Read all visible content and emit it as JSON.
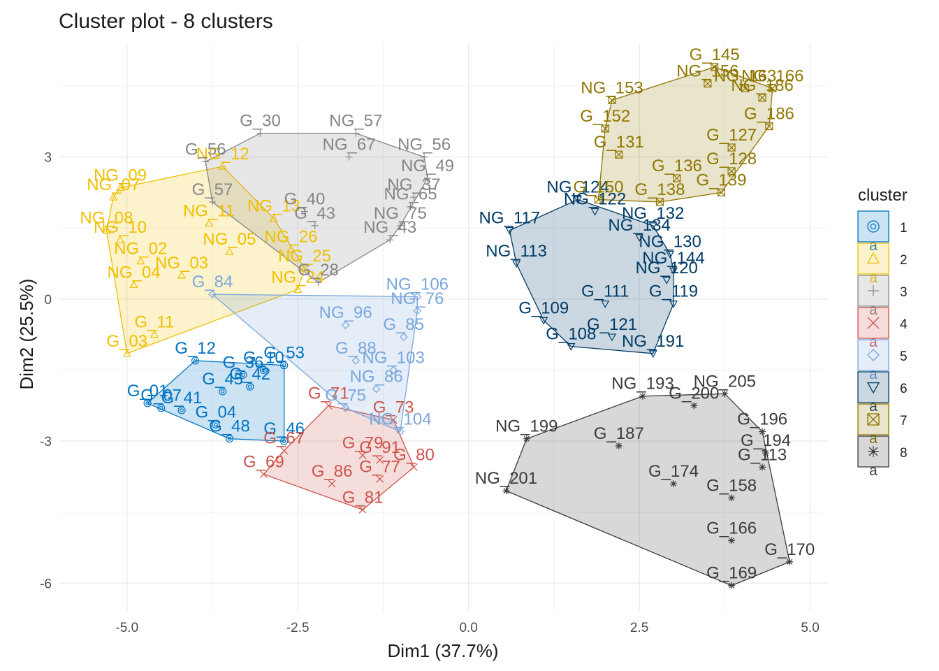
{
  "chart_data": {
    "type": "scatter",
    "title": "Cluster plot - 8 clusters",
    "xlabel": "Dim1 (37.7%)",
    "ylabel": "Dim2 (25.5%)",
    "xlim": [
      -6.0,
      5.25
    ],
    "ylim": [
      -6.6,
      5.4
    ],
    "xticks": [
      -5.0,
      -2.5,
      0.0,
      2.5,
      5.0
    ],
    "xtick_labels": [
      "-5.0",
      "-2.5",
      "0.0",
      "2.5",
      "5.0"
    ],
    "yticks": [
      -6,
      -3,
      0,
      3
    ],
    "ytick_labels": [
      "-6",
      "-3",
      "0",
      "3"
    ],
    "grid": true,
    "legend": {
      "title": "cluster",
      "placement": "right",
      "items": [
        {
          "label": "1",
          "color": "#0073C2",
          "shape": "circle"
        },
        {
          "label": "2",
          "color": "#EFC000",
          "shape": "triangle"
        },
        {
          "label": "3",
          "color": "#868686",
          "shape": "plus"
        },
        {
          "label": "4",
          "color": "#CD534C",
          "shape": "x"
        },
        {
          "label": "5",
          "color": "#7AA6DC",
          "shape": "diamond"
        },
        {
          "label": "6",
          "color": "#003C67",
          "shape": "triangle-down"
        },
        {
          "label": "7",
          "color": "#8F7700",
          "shape": "square-x"
        },
        {
          "label": "8",
          "color": "#3B3B3B",
          "shape": "star"
        }
      ]
    },
    "clusters": [
      {
        "name": "1",
        "points": [
          {
            "label": "G_01",
            "x": -4.7,
            "y": -2.2
          },
          {
            "label": "G_07",
            "x": -4.5,
            "y": -2.3
          },
          {
            "label": "G_41",
            "x": -4.2,
            "y": -2.35
          },
          {
            "label": "G_04",
            "x": -3.7,
            "y": -2.65
          },
          {
            "label": "G_48",
            "x": -3.5,
            "y": -2.95
          },
          {
            "label": "G_46",
            "x": -2.7,
            "y": -3.0
          },
          {
            "label": "G_45",
            "x": -3.6,
            "y": -1.95
          },
          {
            "label": "G_42",
            "x": -3.2,
            "y": -1.85
          },
          {
            "label": "G_12",
            "x": -4.0,
            "y": -1.3
          },
          {
            "label": "G_36",
            "x": -3.3,
            "y": -1.6
          },
          {
            "label": "G_10",
            "x": -3.0,
            "y": -1.5
          },
          {
            "label": "G_53",
            "x": -2.7,
            "y": -1.4
          }
        ]
      },
      {
        "name": "2",
        "points": [
          {
            "label": "NG_09",
            "x": -5.1,
            "y": 2.35
          },
          {
            "label": "NG_07",
            "x": -5.2,
            "y": 2.15
          },
          {
            "label": "NG_08",
            "x": -5.3,
            "y": 1.45
          },
          {
            "label": "NG_10",
            "x": -5.1,
            "y": 1.25
          },
          {
            "label": "NG_02",
            "x": -4.8,
            "y": 0.8
          },
          {
            "label": "NG_04",
            "x": -4.9,
            "y": 0.3
          },
          {
            "label": "G_11",
            "x": -4.6,
            "y": -0.75
          },
          {
            "label": "G_03",
            "x": -5.0,
            "y": -1.15
          },
          {
            "label": "NG_12",
            "x": -3.6,
            "y": 2.8
          },
          {
            "label": "NG_11",
            "x": -3.8,
            "y": 1.6
          },
          {
            "label": "NG_13",
            "x": -2.85,
            "y": 1.7
          },
          {
            "label": "NG_05",
            "x": -3.5,
            "y": 1.0
          },
          {
            "label": "NG_26",
            "x": -2.6,
            "y": 1.05
          },
          {
            "label": "NG_25",
            "x": -2.4,
            "y": 0.65
          },
          {
            "label": "NG_24",
            "x": -2.5,
            "y": 0.2
          },
          {
            "label": "NG_03",
            "x": -4.2,
            "y": 0.5
          }
        ]
      },
      {
        "name": "3",
        "points": [
          {
            "label": "G_30",
            "x": -3.05,
            "y": 3.5
          },
          {
            "label": "NG_57",
            "x": -1.65,
            "y": 3.5
          },
          {
            "label": "NG_56",
            "x": -0.65,
            "y": 3.0
          },
          {
            "label": "NG_67",
            "x": -1.75,
            "y": 3.0
          },
          {
            "label": "G_56",
            "x": -3.85,
            "y": 2.9
          },
          {
            "label": "NG_49",
            "x": -0.6,
            "y": 2.55
          },
          {
            "label": "NG_37",
            "x": -0.8,
            "y": 2.15
          },
          {
            "label": "NG_65",
            "x": -0.85,
            "y": 1.95
          },
          {
            "label": "NG_75",
            "x": -1.0,
            "y": 1.55
          },
          {
            "label": "NG_43",
            "x": -1.15,
            "y": 1.25
          },
          {
            "label": "G_40",
            "x": -2.4,
            "y": 1.85
          },
          {
            "label": "G_43",
            "x": -2.25,
            "y": 1.55
          },
          {
            "label": "G_57",
            "x": -3.75,
            "y": 2.05
          },
          {
            "label": "G_28",
            "x": -2.2,
            "y": 0.35
          }
        ]
      },
      {
        "name": "4",
        "points": [
          {
            "label": "G_71",
            "x": -2.05,
            "y": -2.25
          },
          {
            "label": "G_73",
            "x": -1.1,
            "y": -2.55
          },
          {
            "label": "G_67",
            "x": -2.7,
            "y": -3.2
          },
          {
            "label": "G_79",
            "x": -1.55,
            "y": -3.3
          },
          {
            "label": "G_91",
            "x": -1.3,
            "y": -3.4
          },
          {
            "label": "G_80",
            "x": -0.8,
            "y": -3.55
          },
          {
            "label": "G_77",
            "x": -1.3,
            "y": -3.8
          },
          {
            "label": "G_69",
            "x": -3.0,
            "y": -3.7
          },
          {
            "label": "G_86",
            "x": -2.0,
            "y": -3.9
          },
          {
            "label": "G_81",
            "x": -1.55,
            "y": -4.45
          }
        ]
      },
      {
        "name": "5",
        "points": [
          {
            "label": "NG_106",
            "x": -0.75,
            "y": 0.05
          },
          {
            "label": "NG_76",
            "x": -0.75,
            "y": -0.25
          },
          {
            "label": "G_85",
            "x": -0.95,
            "y": -0.8
          },
          {
            "label": "NG_103",
            "x": -1.1,
            "y": -1.5
          },
          {
            "label": "NG_86",
            "x": -1.35,
            "y": -1.9
          },
          {
            "label": "NG_104",
            "x": -1.0,
            "y": -2.8
          },
          {
            "label": "G_84",
            "x": -3.75,
            "y": 0.1
          },
          {
            "label": "G_75",
            "x": -1.8,
            "y": -2.3
          },
          {
            "label": "G_88",
            "x": -1.65,
            "y": -1.3
          },
          {
            "label": "NG_96",
            "x": -1.8,
            "y": -0.55
          }
        ]
      },
      {
        "name": "6",
        "points": [
          {
            "label": "NG_124",
            "x": 1.6,
            "y": 2.1
          },
          {
            "label": "NG_122",
            "x": 1.85,
            "y": 1.85
          },
          {
            "label": "NG_132",
            "x": 2.7,
            "y": 1.55
          },
          {
            "label": "NG_134",
            "x": 2.5,
            "y": 1.3
          },
          {
            "label": "NG_130",
            "x": 2.95,
            "y": 0.95
          },
          {
            "label": "NG_144",
            "x": 3.0,
            "y": 0.6
          },
          {
            "label": "NG_120",
            "x": 2.9,
            "y": 0.4
          },
          {
            "label": "NG_117",
            "x": 0.6,
            "y": 1.45
          },
          {
            "label": "NG_113",
            "x": 0.7,
            "y": 0.75
          },
          {
            "label": "G_119",
            "x": 3.0,
            "y": -0.1
          },
          {
            "label": "G_111",
            "x": 2.0,
            "y": -0.1
          },
          {
            "label": "G_109",
            "x": 1.1,
            "y": -0.45
          },
          {
            "label": "G_108",
            "x": 1.5,
            "y": -1.0
          },
          {
            "label": "NG_191",
            "x": 2.7,
            "y": -1.15
          },
          {
            "label": "G_121",
            "x": 2.1,
            "y": -0.8
          }
        ]
      },
      {
        "name": "7",
        "points": [
          {
            "label": "G_145",
            "x": 3.6,
            "y": 4.9
          },
          {
            "label": "NG_156",
            "x": 3.5,
            "y": 4.55
          },
          {
            "label": "NG_163",
            "x": 4.05,
            "y": 4.45
          },
          {
            "label": "NG_186",
            "x": 4.3,
            "y": 4.25
          },
          {
            "label": "NG_166",
            "x": 4.45,
            "y": 4.45
          },
          {
            "label": "G_186",
            "x": 4.4,
            "y": 3.65
          },
          {
            "label": "G_127",
            "x": 3.85,
            "y": 3.2
          },
          {
            "label": "G_128",
            "x": 3.85,
            "y": 2.7
          },
          {
            "label": "G_139",
            "x": 3.7,
            "y": 2.25
          },
          {
            "label": "G_138",
            "x": 2.8,
            "y": 2.05
          },
          {
            "label": "G_136",
            "x": 3.05,
            "y": 2.55
          },
          {
            "label": "G_150",
            "x": 1.9,
            "y": 2.1
          },
          {
            "label": "G_152",
            "x": 2.0,
            "y": 3.6
          },
          {
            "label": "NG_153",
            "x": 2.1,
            "y": 4.2
          },
          {
            "label": "G_131",
            "x": 2.2,
            "y": 3.05
          }
        ]
      },
      {
        "name": "8",
        "points": [
          {
            "label": "NG_199",
            "x": 0.85,
            "y": -2.95
          },
          {
            "label": "NG_201",
            "x": 0.55,
            "y": -4.05
          },
          {
            "label": "G_170",
            "x": 4.7,
            "y": -5.55
          },
          {
            "label": "G_169",
            "x": 3.85,
            "y": -6.05
          },
          {
            "label": "G_166",
            "x": 3.85,
            "y": -5.1
          },
          {
            "label": "G_158",
            "x": 3.85,
            "y": -4.2
          },
          {
            "label": "G_196",
            "x": 4.3,
            "y": -2.8
          },
          {
            "label": "G_194",
            "x": 4.35,
            "y": -3.25
          },
          {
            "label": "G_113",
            "x": 4.3,
            "y": -3.55
          },
          {
            "label": "NG_205",
            "x": 3.75,
            "y": -2.0
          },
          {
            "label": "NG_193",
            "x": 2.55,
            "y": -2.05
          },
          {
            "label": "G_187",
            "x": 2.2,
            "y": -3.1
          },
          {
            "label": "G_200",
            "x": 3.3,
            "y": -2.25
          },
          {
            "label": "G_174",
            "x": 3.0,
            "y": -3.9
          }
        ]
      }
    ]
  }
}
